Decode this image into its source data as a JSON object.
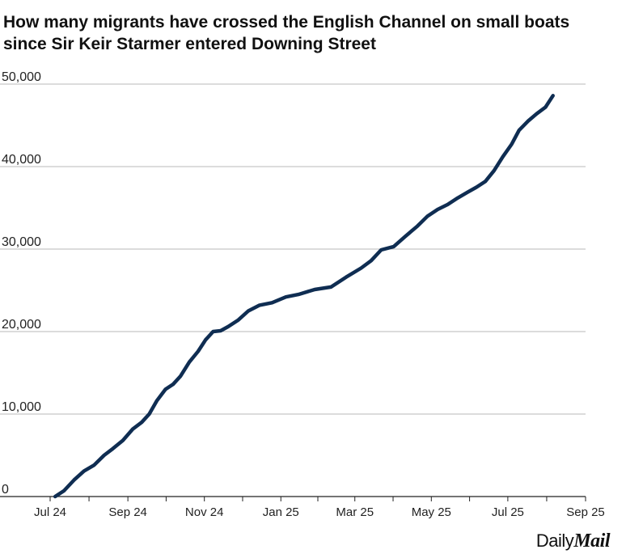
{
  "chart_data": {
    "type": "line",
    "title": "How many migrants have crossed the English Channel on small boats since Sir Keir Starmer entered Downing Street",
    "title_lines": [
      "How many migrants have crossed the English Channel on small boats",
      "since Sir Keir Starmer entered Downing Street"
    ],
    "xlabel": "",
    "ylabel": "",
    "ylim": [
      0,
      50000
    ],
    "xlim": [
      "2024-07-01",
      "2025-09-01"
    ],
    "grid": true,
    "legend": "none",
    "yticks": [
      0,
      10000,
      20000,
      30000,
      40000,
      50000
    ],
    "ytick_labels": [
      "0",
      "10,000",
      "20,000",
      "30,000",
      "40,000",
      "50,000"
    ],
    "xticks": [
      "2024-07-01",
      "2024-09-01",
      "2024-11-01",
      "2025-01-01",
      "2025-03-01",
      "2025-05-01",
      "2025-07-01",
      "2025-09-01"
    ],
    "xtick_labels": [
      "Jul 24",
      "Sep 24",
      "Nov 24",
      "Jan 25",
      "Mar 25",
      "May 25",
      "Jul 25",
      "Sep 25"
    ],
    "line_color": "#0f2d52",
    "series": [
      {
        "x": [
          "2024-07-05",
          "2024-07-12",
          "2024-07-20",
          "2024-07-28",
          "2024-08-05",
          "2024-08-13",
          "2024-08-20",
          "2024-08-28",
          "2024-09-05",
          "2024-09-12",
          "2024-09-18",
          "2024-09-24",
          "2024-10-01",
          "2024-10-07",
          "2024-10-13",
          "2024-10-20",
          "2024-10-27",
          "2024-11-02",
          "2024-11-08",
          "2024-11-14",
          "2024-11-20",
          "2024-11-28",
          "2024-12-06",
          "2024-12-15",
          "2024-12-25",
          "2025-01-05",
          "2025-01-15",
          "2025-01-28",
          "2025-02-10",
          "2025-02-22",
          "2025-03-06",
          "2025-03-14",
          "2025-03-22",
          "2025-04-01",
          "2025-04-10",
          "2025-04-20",
          "2025-04-28",
          "2025-05-06",
          "2025-05-14",
          "2025-05-22",
          "2025-05-30",
          "2025-06-06",
          "2025-06-13",
          "2025-06-20",
          "2025-06-27",
          "2025-07-04",
          "2025-07-10",
          "2025-07-17",
          "2025-07-24",
          "2025-07-31",
          "2025-08-06"
        ],
        "values": [
          0,
          700,
          2000,
          3100,
          3800,
          5000,
          5800,
          6800,
          8200,
          9000,
          10000,
          11600,
          13000,
          13600,
          14600,
          16300,
          17600,
          19000,
          20000,
          20100,
          20600,
          21400,
          22500,
          23200,
          23500,
          24200,
          24500,
          25100,
          25400,
          26600,
          27700,
          28600,
          29900,
          30300,
          31500,
          32800,
          34000,
          34800,
          35400,
          36200,
          36900,
          37500,
          38200,
          39500,
          41200,
          42700,
          44400,
          45500,
          46400,
          47200,
          48600
        ]
      }
    ]
  },
  "brand": {
    "daily": "Daily",
    "mail": "Mail"
  }
}
